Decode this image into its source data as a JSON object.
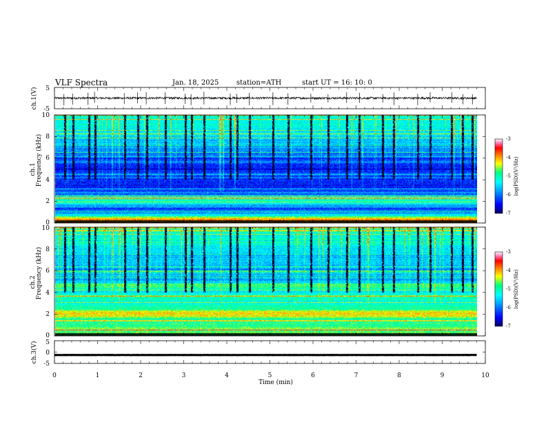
{
  "header": {
    "title": "VLF  Spectra",
    "date": "Jan. 18, 2025",
    "station": "station=ATH",
    "start": "start  UT  =   16: 10: 0"
  },
  "chart_data": [
    {
      "type": "line",
      "name": "ch1-waveform",
      "ylabel": "ch.1(V)",
      "ylim": [
        -5,
        5
      ],
      "yticks": [
        "5",
        "-5"
      ],
      "xlim": [
        0,
        10
      ],
      "x_extent_min": 9.8,
      "baseline": 0,
      "noise_amplitude": 0.5,
      "spike_times_min": [
        0.22,
        0.42,
        0.78,
        0.93,
        1.62,
        1.93,
        2.13,
        2.57,
        3.03,
        3.17,
        3.47,
        4.08,
        4.23,
        4.52,
        5.07,
        5.42,
        5.95,
        6.35,
        6.78,
        7.08,
        7.62,
        7.88,
        8.43,
        8.72,
        9.22,
        9.48,
        9.7
      ]
    },
    {
      "type": "heatmap",
      "name": "ch2-spectrogram",
      "ylabel": "ch.1\nFrequency  (kHz)",
      "ylabel_lines": [
        "ch.1",
        "Frequency  (kHz)"
      ],
      "xlim": [
        0,
        10
      ],
      "ylim": [
        0,
        10
      ],
      "yticks": [
        "0",
        "2",
        "4",
        "6",
        "8",
        "10"
      ],
      "x_extent_min": 9.8,
      "color_scale": "log(PSD)(V²/Hz)",
      "clim": [
        -7,
        -3
      ],
      "colorbar_ticks": [
        "-3",
        "-4",
        "-5",
        "-6",
        "-7"
      ],
      "colormap": [
        "#000066",
        "#0000ff",
        "#00a0ff",
        "#00ffff",
        "#00ff80",
        "#ffff00",
        "#ff8000",
        "#ff0000",
        "#ff80c0",
        "#ffffff"
      ],
      "frequency_profile_khz_log_psd": [
        [
          0.0,
          -4.2
        ],
        [
          0.3,
          -4.0
        ],
        [
          0.6,
          -5.0
        ],
        [
          1.0,
          -6.0
        ],
        [
          1.3,
          -6.3
        ],
        [
          1.6,
          -5.7
        ],
        [
          2.0,
          -5.2
        ],
        [
          2.2,
          -5.0
        ],
        [
          2.6,
          -5.9
        ],
        [
          3.0,
          -6.3
        ],
        [
          3.5,
          -6.4
        ],
        [
          4.0,
          -6.3
        ],
        [
          4.5,
          -6.2
        ],
        [
          5.0,
          -6.5
        ],
        [
          5.5,
          -6.3
        ],
        [
          6.0,
          -6.2
        ],
        [
          6.5,
          -6.0
        ],
        [
          7.0,
          -5.8
        ],
        [
          8.0,
          -5.5
        ],
        [
          9.0,
          -5.2
        ],
        [
          10.0,
          -5.1
        ]
      ],
      "spike_times_min": [
        0.22,
        0.42,
        0.78,
        0.93,
        1.62,
        1.93,
        2.13,
        2.57,
        3.03,
        3.17,
        3.47,
        4.08,
        4.23,
        4.52,
        5.07,
        5.42,
        5.95,
        6.35,
        6.78,
        7.08,
        7.62,
        7.88,
        8.43,
        8.72,
        9.22,
        9.48,
        9.7
      ]
    },
    {
      "type": "heatmap",
      "name": "ch3-spectrogram",
      "ylabel": "ch.2\nFrequency  (kHz)",
      "ylabel_lines": [
        "ch.2",
        "Frequency  (kHz)"
      ],
      "xlim": [
        0,
        10
      ],
      "ylim": [
        0,
        10
      ],
      "yticks": [
        "0",
        "2",
        "4",
        "6",
        "8",
        "10"
      ],
      "x_extent_min": 9.8,
      "color_scale": "log(PSD)(V²/Hz)",
      "clim": [
        -7,
        -3
      ],
      "colorbar_ticks": [
        "-3",
        "-4",
        "-5",
        "-6",
        "-7"
      ],
      "frequency_profile_khz_log_psd": [
        [
          0.0,
          -4.8
        ],
        [
          0.5,
          -4.6
        ],
        [
          1.0,
          -4.8
        ],
        [
          1.5,
          -4.9
        ],
        [
          2.0,
          -4.0
        ],
        [
          2.3,
          -4.6
        ],
        [
          3.0,
          -5.2
        ],
        [
          3.5,
          -5.0
        ],
        [
          4.0,
          -5.4
        ],
        [
          4.6,
          -4.8
        ],
        [
          5.0,
          -5.6
        ],
        [
          6.0,
          -5.8
        ],
        [
          7.0,
          -5.6
        ],
        [
          8.0,
          -5.4
        ],
        [
          9.0,
          -5.2
        ],
        [
          10.0,
          -5.1
        ]
      ],
      "spike_times_min": [
        0.22,
        0.42,
        0.78,
        0.93,
        1.62,
        1.93,
        2.13,
        2.57,
        3.03,
        3.17,
        3.47,
        4.08,
        4.23,
        4.52,
        5.07,
        5.42,
        5.95,
        6.35,
        6.78,
        7.08,
        7.62,
        7.88,
        8.43,
        8.72,
        9.22,
        9.48,
        9.7
      ]
    },
    {
      "type": "line",
      "name": "ch3-waveform",
      "ylabel": "ch.3(V)",
      "ylim": [
        -5,
        5
      ],
      "yticks": [
        "5",
        "0",
        "-5"
      ],
      "xlim": [
        0,
        10
      ],
      "x_extent_min": 9.8,
      "baseline": -1.3,
      "noise_amplitude": 0.05
    }
  ],
  "xaxis": {
    "label": "Time  (min)",
    "ticks": [
      "0",
      "1",
      "2",
      "3",
      "4",
      "5",
      "6",
      "7",
      "8",
      "9",
      "10"
    ],
    "range": [
      0,
      10
    ]
  }
}
